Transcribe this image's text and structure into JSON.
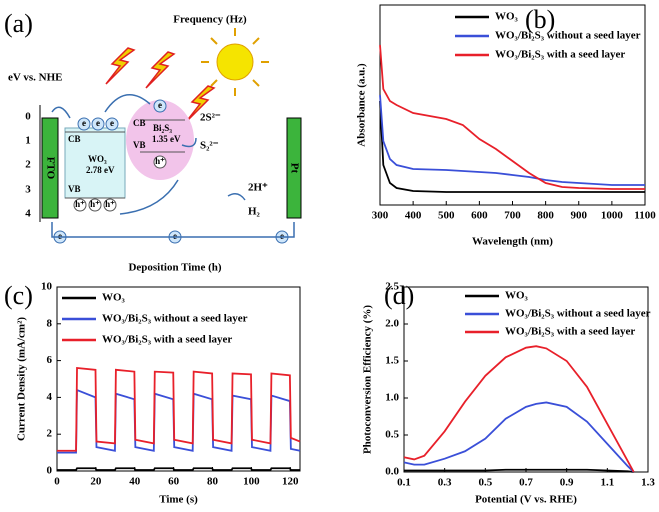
{
  "diagram": {
    "label": "(a)",
    "title": "Frequency (Hz)",
    "y_label": "eV vs. NHE",
    "y_ticks": [
      0,
      1,
      2,
      3,
      4
    ],
    "electrode_left": "FTO",
    "electrode_right": "Pt",
    "wo3": {
      "cb": "CB",
      "vb": "VB",
      "name": "WO₃",
      "gap": "2.78 eV"
    },
    "bi2s3": {
      "cb": "CB",
      "vb": "VB",
      "name": "Bi₂S₃",
      "gap": "1.35 eV"
    },
    "species": [
      "2S²⁻",
      "S₂²⁻",
      "2H⁺",
      "H₂"
    ],
    "electron": "e",
    "hole": "h⁺"
  },
  "chart_data": [
    {
      "type": "line",
      "panel": "(b)",
      "xlabel": "Wavelength (nm)",
      "ylabel": "Absorbance (a.u.)",
      "x": [
        300,
        310,
        330,
        350,
        400,
        500,
        550,
        600,
        650,
        700,
        750,
        800,
        850,
        900,
        1000,
        1100
      ],
      "xlim": [
        300,
        1100
      ],
      "ylim": [
        0,
        1
      ],
      "xticks": [
        300,
        400,
        500,
        600,
        700,
        800,
        900,
        1000,
        1100
      ],
      "series": [
        {
          "name": "WO₃",
          "color": "#000000",
          "values": [
            0.52,
            0.2,
            0.11,
            0.085,
            0.07,
            0.065,
            0.065,
            0.065,
            0.065,
            0.065,
            0.065,
            0.065,
            0.065,
            0.065,
            0.065,
            0.065
          ]
        },
        {
          "name": "WO₃/Bi₂S₃ without a seed layer",
          "color": "#3a4fd8",
          "values": [
            0.55,
            0.32,
            0.23,
            0.2,
            0.18,
            0.175,
            0.17,
            0.165,
            0.16,
            0.15,
            0.14,
            0.125,
            0.115,
            0.11,
            0.1,
            0.1
          ]
        },
        {
          "name": "WO₃/Bi₂S₃ with a seed layer",
          "color": "#e8202a",
          "values": [
            0.8,
            0.58,
            0.52,
            0.5,
            0.46,
            0.43,
            0.4,
            0.33,
            0.28,
            0.22,
            0.16,
            0.11,
            0.09,
            0.085,
            0.08,
            0.08
          ]
        }
      ]
    },
    {
      "type": "line",
      "panel": "(c)",
      "title": "Deposition Time (h)",
      "xlabel": "Time (s)",
      "ylabel": "Current Density (mA/cm²)",
      "x": [
        0,
        9.8,
        10.3,
        19.8,
        20.3,
        29.8,
        30.3,
        39.8,
        40.3,
        49.8,
        50.3,
        59.8,
        60.3,
        69.8,
        70.3,
        79.8,
        80.3,
        89.8,
        90.3,
        99.8,
        100.3,
        109.8,
        110.3,
        119.8,
        120.3,
        125
      ],
      "xlim": [
        0,
        125
      ],
      "ylim": [
        0,
        10
      ],
      "xticks": [
        0,
        20,
        40,
        60,
        80,
        100,
        120
      ],
      "yticks": [
        0,
        2,
        4,
        6,
        8,
        10
      ],
      "series": [
        {
          "name": "WO₃",
          "color": "#000000",
          "values": [
            0.05,
            0.05,
            0.15,
            0.15,
            0.05,
            0.05,
            0.15,
            0.15,
            0.05,
            0.05,
            0.15,
            0.15,
            0.05,
            0.05,
            0.15,
            0.15,
            0.05,
            0.05,
            0.15,
            0.15,
            0.05,
            0.05,
            0.15,
            0.15,
            0.05,
            0.05
          ]
        },
        {
          "name": "WO₃/Bi₂S₃ without a seed layer",
          "color": "#3a4fd8",
          "values": [
            1.0,
            1.0,
            4.4,
            4.0,
            1.3,
            1.1,
            4.2,
            3.9,
            1.3,
            1.1,
            4.2,
            3.9,
            1.3,
            1.1,
            4.2,
            3.9,
            1.3,
            1.1,
            4.1,
            3.9,
            1.3,
            1.1,
            4.1,
            3.8,
            1.2,
            1.1
          ]
        },
        {
          "name": "WO₃/Bi₂S₃ with a seed layer",
          "color": "#e8202a",
          "values": [
            1.1,
            1.1,
            5.6,
            5.5,
            1.6,
            1.5,
            5.5,
            5.4,
            1.7,
            1.5,
            5.4,
            5.35,
            1.7,
            1.5,
            5.4,
            5.3,
            1.7,
            1.5,
            5.3,
            5.25,
            1.7,
            1.5,
            5.3,
            5.2,
            1.8,
            1.6
          ]
        }
      ]
    },
    {
      "type": "line",
      "panel": "(d)",
      "xlabel": "Potential (V vs. RHE)",
      "ylabel": "Photoconversion Efficiency (%)",
      "x": [
        0.1,
        0.15,
        0.2,
        0.3,
        0.4,
        0.5,
        0.6,
        0.7,
        0.75,
        0.8,
        0.9,
        1.0,
        1.1,
        1.2,
        1.23
      ],
      "xlim": [
        0.1,
        1.3
      ],
      "ylim": [
        0,
        2.5
      ],
      "xticks": [
        0.1,
        0.3,
        0.5,
        0.7,
        0.9,
        1.1,
        1.3
      ],
      "yticks": [
        {
          "value": 0,
          "label": "0.0"
        },
        0.5,
        {
          "value": 1,
          "label": "1.0"
        },
        1.5,
        {
          "value": 2,
          "label": "2.0"
        },
        2.5
      ],
      "series": [
        {
          "name": "WO₃",
          "color": "#000000",
          "values": [
            0.02,
            0.02,
            0.02,
            0.02,
            0.02,
            0.02,
            0.03,
            0.03,
            0.03,
            0.03,
            0.03,
            0.03,
            0.02,
            0.01,
            0
          ]
        },
        {
          "name": "WO₃/Bi₂S₃ without a seed layer",
          "color": "#3a4fd8",
          "values": [
            0.13,
            0.1,
            0.1,
            0.18,
            0.28,
            0.45,
            0.72,
            0.88,
            0.92,
            0.94,
            0.88,
            0.68,
            0.38,
            0.08,
            0
          ]
        },
        {
          "name": "WO₃/Bi₂S₃ with a seed layer",
          "color": "#e8202a",
          "values": [
            0.2,
            0.17,
            0.22,
            0.55,
            0.95,
            1.3,
            1.55,
            1.68,
            1.7,
            1.67,
            1.5,
            1.15,
            0.65,
            0.15,
            0
          ]
        }
      ]
    }
  ]
}
